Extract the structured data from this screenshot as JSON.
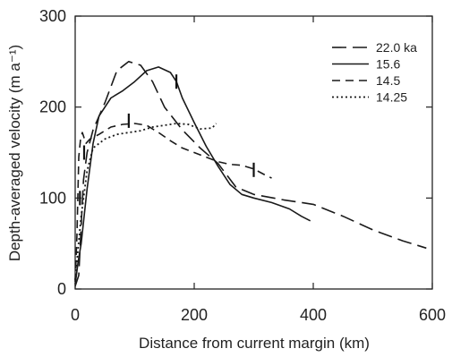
{
  "chart_data": {
    "type": "line",
    "xlabel": "Distance from current margin (km)",
    "ylabel": "Depth-averaged velocity (m a⁻¹)",
    "xlim": [
      0,
      600
    ],
    "ylim": [
      0,
      300
    ],
    "xticks": [
      0,
      200,
      400,
      600
    ],
    "yticks": [
      0,
      100,
      200,
      300
    ],
    "grid": false,
    "legend_position": "top-right",
    "series": [
      {
        "name": "22.0 ka",
        "dash": "long-dash",
        "color": "#1a1a1a",
        "points": [
          [
            0,
            3
          ],
          [
            6,
            15
          ],
          [
            10,
            70
          ],
          [
            14,
            120
          ],
          [
            20,
            150
          ],
          [
            30,
            175
          ],
          [
            50,
            205
          ],
          [
            70,
            240
          ],
          [
            90,
            250
          ],
          [
            110,
            246
          ],
          [
            130,
            228
          ],
          [
            150,
            200
          ],
          [
            180,
            175
          ],
          [
            210,
            155
          ],
          [
            240,
            138
          ],
          [
            270,
            112
          ],
          [
            300,
            104
          ],
          [
            350,
            98
          ],
          [
            400,
            93
          ],
          [
            450,
            80
          ],
          [
            500,
            65
          ],
          [
            550,
            53
          ],
          [
            590,
            45
          ]
        ]
      },
      {
        "name": "15.6",
        "dash": "solid",
        "color": "#1a1a1a",
        "points": [
          [
            0,
            5
          ],
          [
            5,
            30
          ],
          [
            10,
            50
          ],
          [
            20,
            110
          ],
          [
            30,
            160
          ],
          [
            40,
            190
          ],
          [
            60,
            210
          ],
          [
            80,
            218
          ],
          [
            100,
            228
          ],
          [
            120,
            240
          ],
          [
            140,
            244
          ],
          [
            160,
            238
          ],
          [
            170,
            228
          ],
          [
            180,
            210
          ],
          [
            200,
            183
          ],
          [
            220,
            157
          ],
          [
            240,
            135
          ],
          [
            260,
            115
          ],
          [
            280,
            104
          ],
          [
            300,
            100
          ],
          [
            330,
            95
          ],
          [
            360,
            88
          ],
          [
            380,
            80
          ],
          [
            395,
            75
          ]
        ]
      },
      {
        "name": "14.5",
        "dash": "dash",
        "color": "#1a1a1a",
        "points": [
          [
            0,
            8
          ],
          [
            3,
            60
          ],
          [
            6,
            145
          ],
          [
            9,
            165
          ],
          [
            12,
            172
          ],
          [
            18,
            160
          ],
          [
            25,
            165
          ],
          [
            40,
            170
          ],
          [
            60,
            178
          ],
          [
            80,
            181
          ],
          [
            100,
            182
          ],
          [
            120,
            180
          ],
          [
            140,
            172
          ],
          [
            160,
            163
          ],
          [
            180,
            155
          ],
          [
            200,
            150
          ],
          [
            220,
            145
          ],
          [
            240,
            140
          ],
          [
            260,
            137
          ],
          [
            280,
            136
          ],
          [
            300,
            132
          ],
          [
            320,
            125
          ],
          [
            330,
            122
          ]
        ]
      },
      {
        "name": "14.25",
        "dash": "dot",
        "color": "#1a1a1a",
        "points": [
          [
            0,
            10
          ],
          [
            5,
            45
          ],
          [
            10,
            80
          ],
          [
            20,
            130
          ],
          [
            30,
            155
          ],
          [
            50,
            165
          ],
          [
            70,
            170
          ],
          [
            90,
            172
          ],
          [
            110,
            174
          ],
          [
            130,
            178
          ],
          [
            150,
            180
          ],
          [
            170,
            182
          ],
          [
            190,
            181
          ],
          [
            210,
            176
          ],
          [
            230,
            177
          ],
          [
            237,
            182
          ]
        ]
      }
    ],
    "markers": [
      {
        "x": 8,
        "y": 100
      },
      {
        "x": 15,
        "y": 150
      },
      {
        "x": 90,
        "y": 185
      },
      {
        "x": 170,
        "y": 228
      },
      {
        "x": 300,
        "y": 131
      }
    ]
  }
}
